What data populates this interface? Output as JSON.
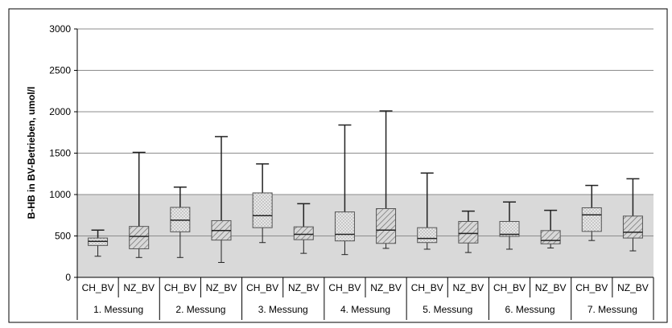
{
  "chart_data": {
    "type": "boxplot",
    "ylabel": "B-HB in BV-Betrieben, umol/l",
    "ylim": [
      0,
      3000
    ],
    "yticks": [
      0,
      500,
      1000,
      1500,
      2000,
      2500,
      3000
    ],
    "grid": true,
    "reference_band": [
      0,
      1000
    ],
    "groups": [
      "1. Messung",
      "2. Messung",
      "3. Messung",
      "4. Messung",
      "5. Messung",
      "6. Messung",
      "7. Messung"
    ],
    "categories": [
      "CH_BV",
      "NZ_BV"
    ],
    "boxes": [
      {
        "group": 0,
        "category": "CH_BV",
        "min": 255,
        "q1": 385,
        "median": 435,
        "q3": 475,
        "max": 570
      },
      {
        "group": 0,
        "category": "NZ_BV",
        "min": 240,
        "q1": 345,
        "median": 495,
        "q3": 615,
        "max": 1510
      },
      {
        "group": 1,
        "category": "CH_BV",
        "min": 240,
        "q1": 550,
        "median": 690,
        "q3": 845,
        "max": 1090
      },
      {
        "group": 1,
        "category": "NZ_BV",
        "min": 180,
        "q1": 450,
        "median": 565,
        "q3": 685,
        "max": 1700
      },
      {
        "group": 2,
        "category": "CH_BV",
        "min": 420,
        "q1": 600,
        "median": 745,
        "q3": 1020,
        "max": 1370
      },
      {
        "group": 2,
        "category": "NZ_BV",
        "min": 290,
        "q1": 455,
        "median": 520,
        "q3": 610,
        "max": 890
      },
      {
        "group": 3,
        "category": "CH_BV",
        "min": 275,
        "q1": 440,
        "median": 520,
        "q3": 790,
        "max": 1840
      },
      {
        "group": 3,
        "category": "NZ_BV",
        "min": 350,
        "q1": 410,
        "median": 570,
        "q3": 830,
        "max": 2010
      },
      {
        "group": 4,
        "category": "CH_BV",
        "min": 340,
        "q1": 420,
        "median": 470,
        "q3": 600,
        "max": 1260
      },
      {
        "group": 4,
        "category": "NZ_BV",
        "min": 300,
        "q1": 415,
        "median": 530,
        "q3": 675,
        "max": 800
      },
      {
        "group": 5,
        "category": "CH_BV",
        "min": 340,
        "q1": 495,
        "median": 520,
        "q3": 675,
        "max": 910
      },
      {
        "group": 5,
        "category": "NZ_BV",
        "min": 355,
        "q1": 405,
        "median": 445,
        "q3": 565,
        "max": 810
      },
      {
        "group": 6,
        "category": "CH_BV",
        "min": 445,
        "q1": 555,
        "median": 755,
        "q3": 840,
        "max": 1110
      },
      {
        "group": 6,
        "category": "NZ_BV",
        "min": 320,
        "q1": 475,
        "median": 545,
        "q3": 740,
        "max": 1190
      }
    ]
  },
  "colors": {
    "band": "#d9d9d9",
    "gridline": "#8c8c8c",
    "ch_fill": "#e0e0e0",
    "nz_fill": "#cfcfcf",
    "stroke": "#222222"
  }
}
